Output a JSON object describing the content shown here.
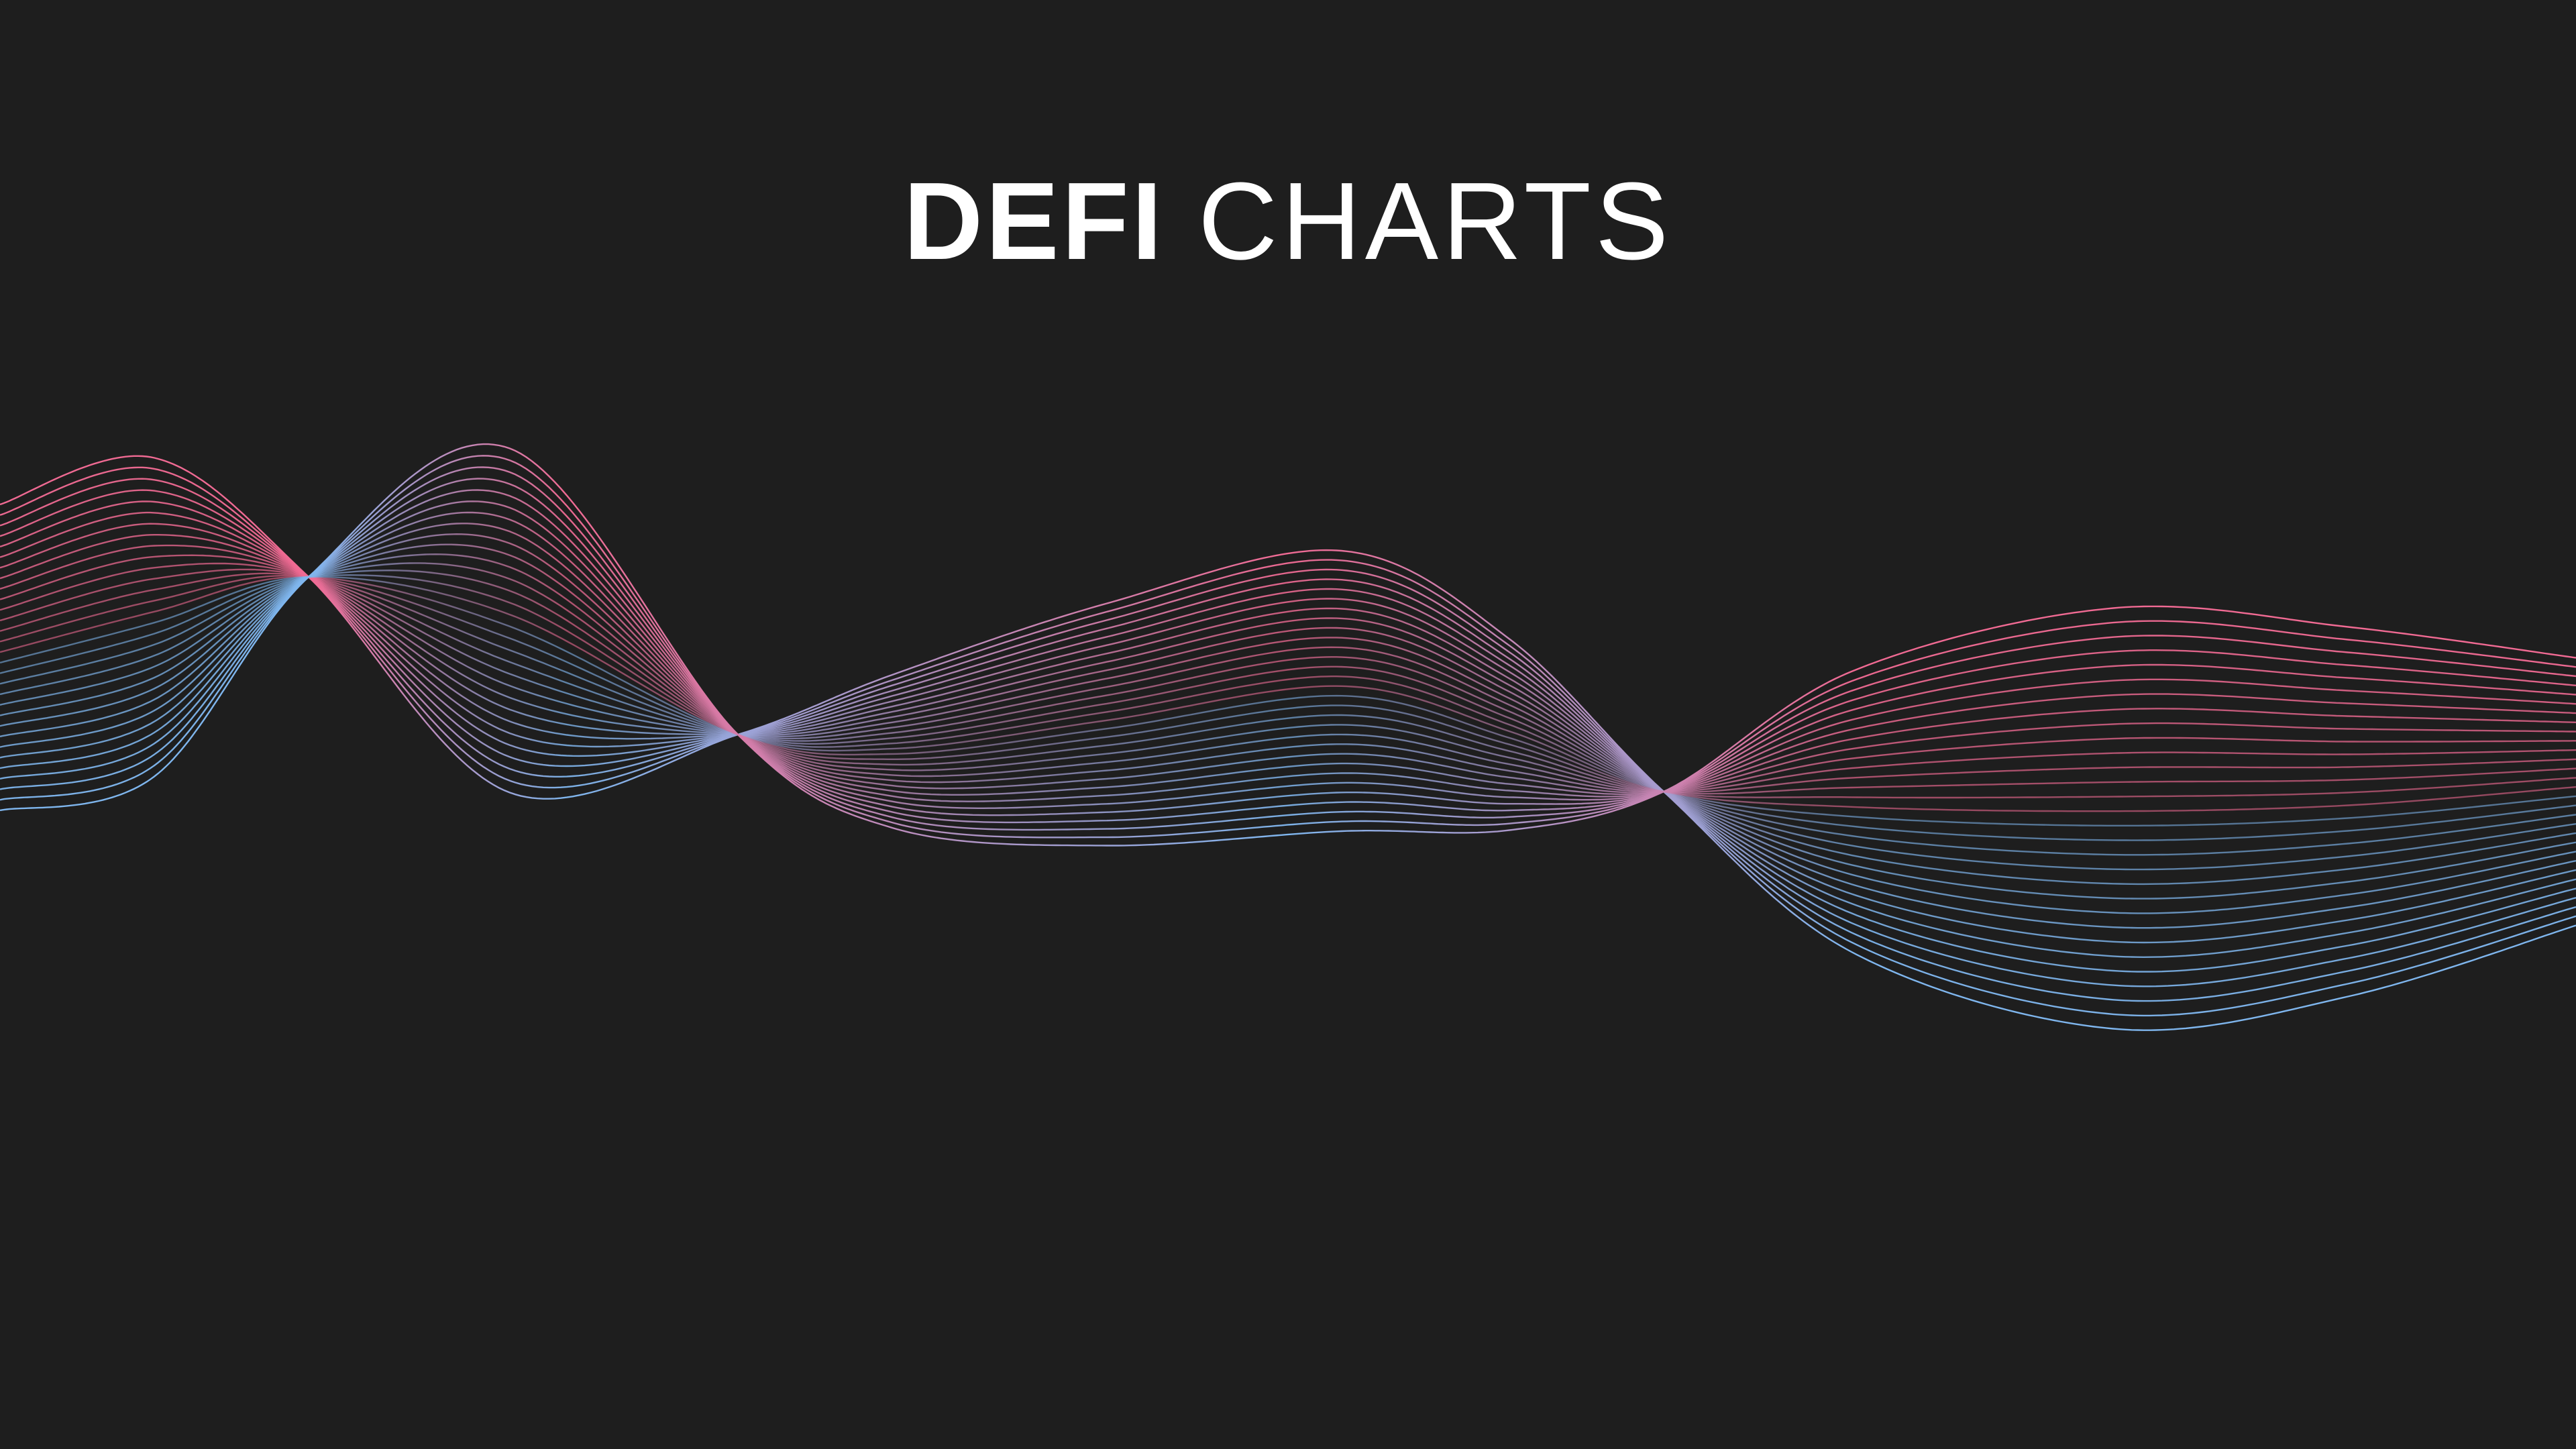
{
  "title": {
    "bold": "DEFI",
    "light": "CHARTS"
  },
  "colors": {
    "background": "#1e1e1e",
    "text": "#ffffff",
    "wave_pink": "#f06a93",
    "wave_blue": "#7fb6ee"
  },
  "wave": {
    "icon": "wave-lines-graphic"
  }
}
